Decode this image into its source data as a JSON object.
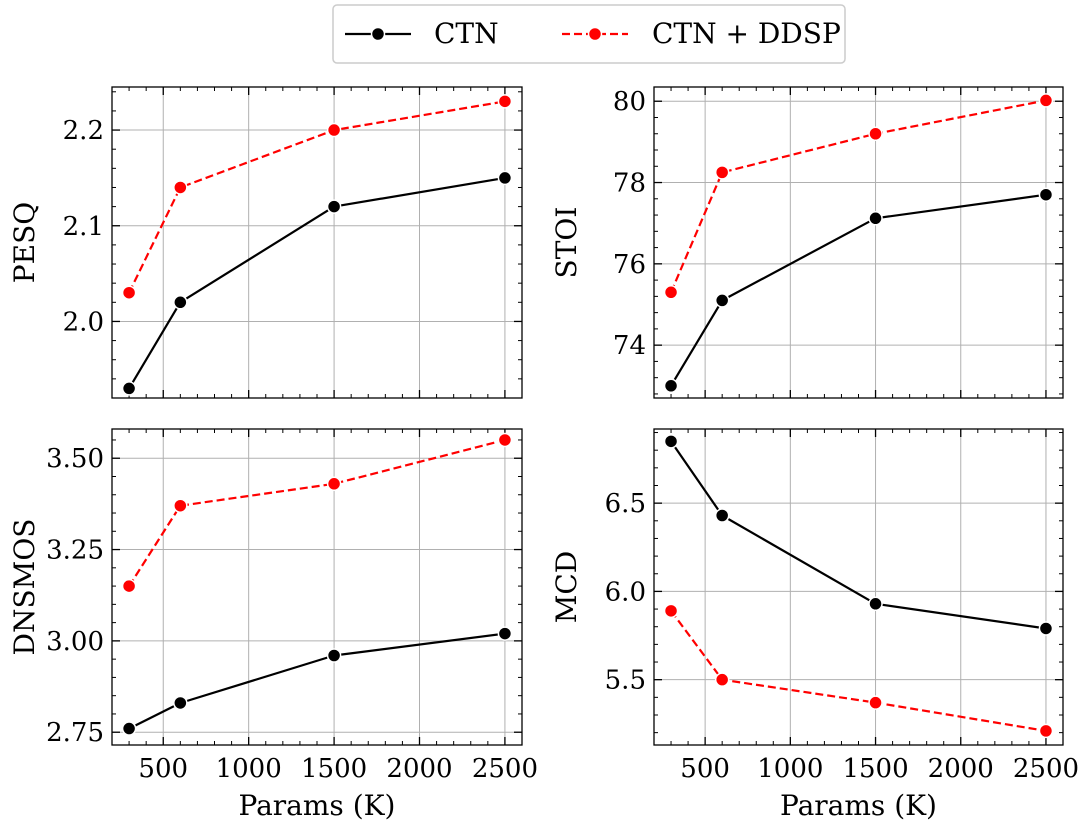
{
  "legend": {
    "entries": [
      {
        "label": "CTN",
        "color": "#000000",
        "dashed": false
      },
      {
        "label": "CTN + DDSP",
        "color": "#ff0000",
        "dashed": true
      }
    ]
  },
  "chart_data": [
    {
      "type": "line",
      "id": "pesq",
      "ylabel": "PESQ",
      "xlabel": "",
      "x": [
        300,
        600,
        1500,
        2500
      ],
      "xlim": [
        200,
        2600
      ],
      "ylim": [
        1.92,
        2.245
      ],
      "xticks": [
        500,
        1000,
        1500,
        2000,
        2500
      ],
      "xticklabels": [],
      "yticks": [
        2.0,
        2.1,
        2.2
      ],
      "yticklabels": [
        "2.0",
        "2.1",
        "2.2"
      ],
      "grid": true,
      "series": [
        {
          "name": "CTN",
          "color": "#000000",
          "dashed": false,
          "values": [
            1.93,
            2.02,
            2.12,
            2.15
          ]
        },
        {
          "name": "CTN + DDSP",
          "color": "#ff0000",
          "dashed": true,
          "values": [
            2.03,
            2.14,
            2.2,
            2.23
          ]
        }
      ]
    },
    {
      "type": "line",
      "id": "stoi",
      "ylabel": "STOI",
      "xlabel": "",
      "x": [
        300,
        600,
        1500,
        2500
      ],
      "xlim": [
        200,
        2600
      ],
      "ylim": [
        72.7,
        80.35
      ],
      "xticks": [
        500,
        1000,
        1500,
        2000,
        2500
      ],
      "xticklabels": [],
      "yticks": [
        74,
        76,
        78,
        80
      ],
      "yticklabels": [
        "74",
        "76",
        "78",
        "80"
      ],
      "grid": true,
      "series": [
        {
          "name": "CTN",
          "color": "#000000",
          "dashed": false,
          "values": [
            73.0,
            75.1,
            77.12,
            77.7
          ]
        },
        {
          "name": "CTN + DDSP",
          "color": "#ff0000",
          "dashed": true,
          "values": [
            75.3,
            78.25,
            79.2,
            80.02
          ]
        }
      ]
    },
    {
      "type": "line",
      "id": "dnsmos",
      "ylabel": "DNSMOS",
      "xlabel": "Params (K)",
      "x": [
        300,
        600,
        1500,
        2500
      ],
      "xlim": [
        200,
        2600
      ],
      "ylim": [
        2.715,
        3.58
      ],
      "xticks": [
        500,
        1000,
        1500,
        2000,
        2500
      ],
      "xticklabels": [
        "500",
        "1000",
        "1500",
        "2000",
        "2500"
      ],
      "yticks": [
        2.75,
        3.0,
        3.25,
        3.5
      ],
      "yticklabels": [
        "2.75",
        "3.00",
        "3.25",
        "3.50"
      ],
      "grid": true,
      "series": [
        {
          "name": "CTN",
          "color": "#000000",
          "dashed": false,
          "values": [
            2.76,
            2.83,
            2.96,
            3.02
          ]
        },
        {
          "name": "CTN + DDSP",
          "color": "#ff0000",
          "dashed": true,
          "values": [
            3.15,
            3.37,
            3.43,
            3.55
          ]
        }
      ]
    },
    {
      "type": "line",
      "id": "mcd",
      "ylabel": "MCD",
      "xlabel": "Params (K)",
      "x": [
        300,
        600,
        1500,
        2500
      ],
      "xlim": [
        200,
        2600
      ],
      "ylim": [
        5.13,
        6.92
      ],
      "xticks": [
        500,
        1000,
        1500,
        2000,
        2500
      ],
      "xticklabels": [
        "500",
        "1000",
        "1500",
        "2000",
        "2500"
      ],
      "yticks": [
        5.5,
        6.0,
        6.5
      ],
      "yticklabels": [
        "5.5",
        "6.0",
        "6.5"
      ],
      "grid": true,
      "series": [
        {
          "name": "CTN",
          "color": "#000000",
          "dashed": false,
          "values": [
            6.85,
            6.43,
            5.93,
            5.79
          ]
        },
        {
          "name": "CTN + DDSP",
          "color": "#ff0000",
          "dashed": true,
          "values": [
            5.89,
            5.5,
            5.37,
            5.21
          ]
        }
      ]
    }
  ]
}
